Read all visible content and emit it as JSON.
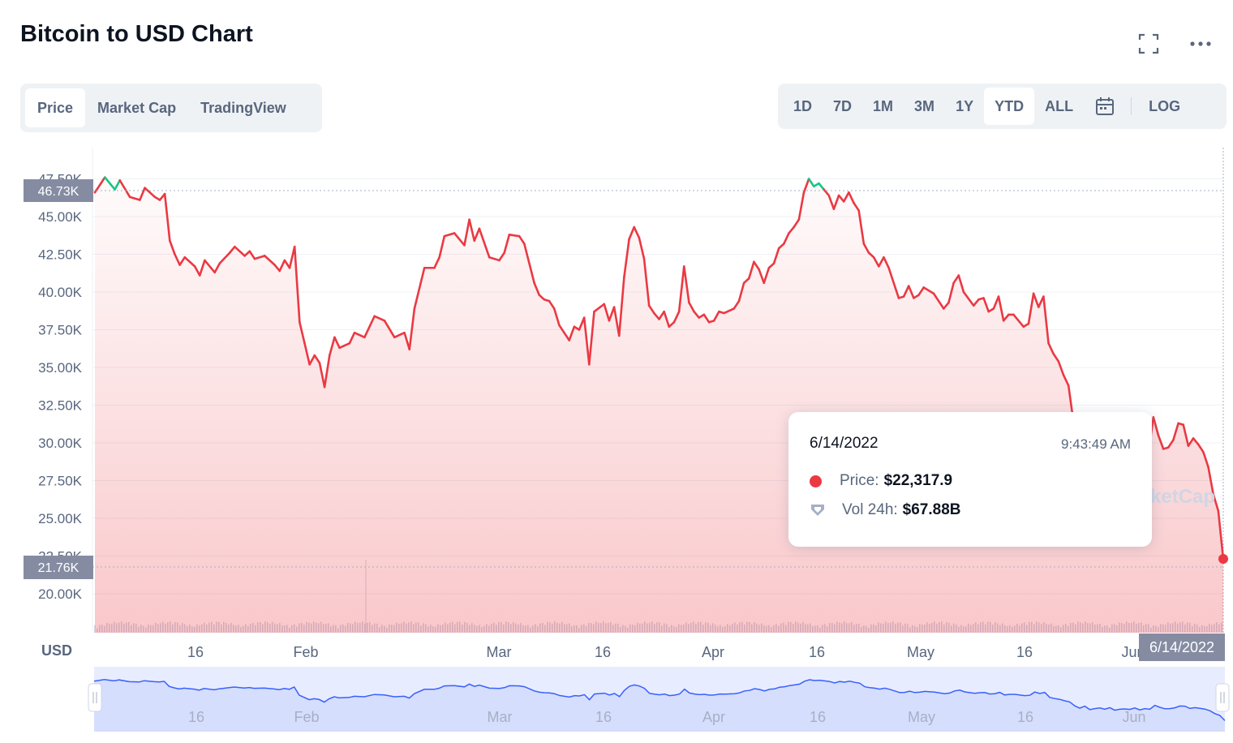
{
  "header": {
    "title": "Bitcoin to USD Chart",
    "fullscreen_icon": "expand-icon",
    "more_icon": "more-horizontal-icon"
  },
  "tabs": [
    {
      "label": "Price",
      "active": true
    },
    {
      "label": "Market Cap",
      "active": false
    },
    {
      "label": "TradingView",
      "active": false
    }
  ],
  "ranges": [
    {
      "label": "1D",
      "active": false
    },
    {
      "label": "7D",
      "active": false
    },
    {
      "label": "1M",
      "active": false
    },
    {
      "label": "3M",
      "active": false
    },
    {
      "label": "1Y",
      "active": false
    },
    {
      "label": "YTD",
      "active": true
    },
    {
      "label": "ALL",
      "active": false
    }
  ],
  "calendar_icon": "calendar-icon",
  "log_label": "LOG",
  "tooltip": {
    "date": "6/14/2022",
    "time": "9:43:49 AM",
    "price_label": "Price:",
    "price_value": "$22,317.9",
    "volume_label": "Vol 24h:",
    "volume_value": "$67.88B"
  },
  "watermark": "ketCap",
  "chart_data": {
    "type": "line",
    "title": "",
    "currency": "USD",
    "y_ticks": [
      "47.50K",
      "45.00K",
      "42.50K",
      "40.00K",
      "37.50K",
      "35.00K",
      "32.50K",
      "30.00K",
      "27.50K",
      "25.00K",
      "22.50K",
      "20.00K"
    ],
    "ylim": [
      18000,
      48000
    ],
    "x_ticks": [
      "16",
      "Feb",
      "Mar",
      "16",
      "Apr",
      "16",
      "May",
      "16",
      "Jun"
    ],
    "navigator_ticks": [
      "16",
      "Feb",
      "Mar",
      "16",
      "Apr",
      "16",
      "May",
      "16",
      "Jun"
    ],
    "open_price_label": "46.73K",
    "open_price": 46730,
    "current_price_label": "21.76K",
    "current_price": 21760,
    "current_date_label": "6/14/2022",
    "colors": {
      "up": "#16c784",
      "down": "#ea3943",
      "navigator": "#3861fb"
    },
    "series": [
      {
        "values": [
          [
            0,
            46600
          ],
          [
            2,
            47600
          ],
          [
            4,
            46800
          ],
          [
            5,
            47400
          ],
          [
            7,
            46300
          ],
          [
            9,
            46100
          ],
          [
            10,
            46900
          ],
          [
            12,
            46300
          ],
          [
            13,
            46100
          ],
          [
            14,
            46500
          ],
          [
            15,
            43400
          ],
          [
            16,
            42500
          ],
          [
            17,
            41800
          ],
          [
            18,
            42300
          ],
          [
            20,
            41700
          ],
          [
            21,
            41100
          ],
          [
            22,
            42100
          ],
          [
            24,
            41300
          ],
          [
            25,
            41900
          ],
          [
            27,
            42600
          ],
          [
            28,
            43000
          ],
          [
            30,
            42400
          ],
          [
            31,
            42700
          ],
          [
            32,
            42200
          ],
          [
            34,
            42400
          ],
          [
            36,
            41800
          ],
          [
            37,
            41400
          ],
          [
            38,
            42100
          ],
          [
            39,
            41600
          ],
          [
            40,
            43000
          ],
          [
            41,
            38000
          ],
          [
            42,
            36600
          ],
          [
            43,
            35200
          ],
          [
            44,
            35800
          ],
          [
            45,
            35300
          ],
          [
            46,
            33700
          ],
          [
            47,
            35800
          ],
          [
            48,
            37000
          ],
          [
            49,
            36300
          ],
          [
            51,
            36600
          ],
          [
            52,
            37300
          ],
          [
            54,
            37000
          ],
          [
            56,
            38400
          ],
          [
            58,
            38100
          ],
          [
            60,
            37000
          ],
          [
            62,
            37300
          ],
          [
            63,
            36200
          ],
          [
            64,
            38900
          ],
          [
            66,
            41600
          ],
          [
            68,
            41600
          ],
          [
            69,
            42300
          ],
          [
            70,
            43700
          ],
          [
            72,
            43900
          ],
          [
            74,
            43100
          ],
          [
            75,
            44800
          ],
          [
            76,
            43400
          ],
          [
            77,
            44200
          ],
          [
            79,
            42300
          ],
          [
            81,
            42100
          ],
          [
            82,
            42600
          ],
          [
            83,
            43800
          ],
          [
            85,
            43700
          ],
          [
            86,
            43200
          ],
          [
            88,
            40600
          ],
          [
            89,
            39800
          ],
          [
            90,
            39500
          ],
          [
            91,
            39400
          ],
          [
            92,
            38900
          ],
          [
            93,
            37800
          ],
          [
            94,
            37300
          ],
          [
            95,
            36800
          ],
          [
            96,
            37700
          ],
          [
            97,
            37500
          ],
          [
            98,
            38300
          ],
          [
            99,
            35200
          ],
          [
            100,
            38700
          ],
          [
            102,
            39200
          ],
          [
            103,
            38100
          ],
          [
            104,
            39000
          ],
          [
            105,
            37100
          ],
          [
            106,
            41000
          ],
          [
            107,
            43500
          ],
          [
            108,
            44300
          ],
          [
            109,
            43600
          ],
          [
            110,
            42200
          ],
          [
            111,
            39100
          ],
          [
            112,
            38600
          ],
          [
            113,
            38200
          ],
          [
            114,
            38700
          ],
          [
            115,
            37700
          ],
          [
            116,
            38000
          ],
          [
            117,
            38700
          ],
          [
            118,
            41700
          ],
          [
            119,
            39300
          ],
          [
            120,
            38700
          ],
          [
            121,
            38300
          ],
          [
            122,
            38500
          ],
          [
            123,
            38000
          ],
          [
            124,
            38100
          ],
          [
            125,
            38700
          ],
          [
            126,
            38600
          ],
          [
            128,
            38900
          ],
          [
            129,
            39400
          ],
          [
            130,
            40600
          ],
          [
            131,
            40900
          ],
          [
            132,
            42000
          ],
          [
            133,
            41500
          ],
          [
            134,
            40600
          ],
          [
            135,
            41600
          ],
          [
            136,
            41900
          ],
          [
            137,
            42900
          ],
          [
            138,
            43200
          ],
          [
            139,
            43900
          ],
          [
            140,
            44300
          ],
          [
            141,
            44800
          ],
          [
            142,
            46600
          ],
          [
            143,
            47500
          ],
          [
            144,
            47000
          ],
          [
            145,
            47200
          ],
          [
            146,
            46800
          ],
          [
            147,
            46400
          ],
          [
            148,
            45500
          ],
          [
            149,
            46400
          ],
          [
            150,
            46000
          ],
          [
            151,
            46600
          ],
          [
            152,
            45900
          ],
          [
            153,
            45400
          ],
          [
            154,
            43200
          ],
          [
            155,
            42600
          ],
          [
            156,
            42300
          ],
          [
            157,
            41700
          ],
          [
            158,
            42300
          ],
          [
            159,
            41600
          ],
          [
            161,
            39600
          ],
          [
            162,
            39700
          ],
          [
            163,
            40400
          ],
          [
            164,
            39600
          ],
          [
            165,
            39800
          ],
          [
            166,
            40300
          ],
          [
            168,
            39900
          ],
          [
            170,
            38900
          ],
          [
            171,
            39300
          ],
          [
            172,
            40600
          ],
          [
            173,
            41100
          ],
          [
            174,
            40000
          ],
          [
            176,
            39100
          ],
          [
            177,
            39500
          ],
          [
            178,
            39600
          ],
          [
            179,
            38700
          ],
          [
            180,
            38900
          ],
          [
            181,
            39700
          ],
          [
            182,
            38100
          ],
          [
            183,
            38500
          ],
          [
            184,
            38500
          ],
          [
            186,
            37700
          ],
          [
            187,
            37900
          ],
          [
            188,
            39900
          ],
          [
            189,
            39000
          ],
          [
            190,
            39700
          ],
          [
            191,
            36600
          ],
          [
            192,
            35900
          ],
          [
            193,
            35400
          ],
          [
            194,
            34500
          ],
          [
            195,
            33800
          ],
          [
            196,
            31400
          ],
          [
            197,
            30000
          ],
          [
            198,
            31200
          ],
          [
            199,
            29100
          ],
          [
            200,
            29700
          ],
          [
            201,
            30100
          ],
          [
            202,
            29300
          ],
          [
            203,
            30300
          ],
          [
            204,
            28700
          ],
          [
            205,
            29300
          ],
          [
            206,
            29500
          ],
          [
            207,
            29200
          ],
          [
            208,
            30100
          ],
          [
            209,
            28900
          ],
          [
            210,
            29700
          ],
          [
            211,
            29300
          ],
          [
            212,
            31700
          ],
          [
            213,
            30500
          ],
          [
            214,
            29600
          ],
          [
            215,
            29700
          ],
          [
            216,
            30200
          ],
          [
            217,
            31300
          ],
          [
            218,
            31200
          ],
          [
            219,
            29800
          ],
          [
            220,
            30300
          ],
          [
            221,
            29900
          ],
          [
            222,
            29400
          ],
          [
            223,
            28400
          ],
          [
            224,
            26600
          ],
          [
            225,
            25500
          ],
          [
            226,
            22300
          ]
        ]
      }
    ]
  }
}
